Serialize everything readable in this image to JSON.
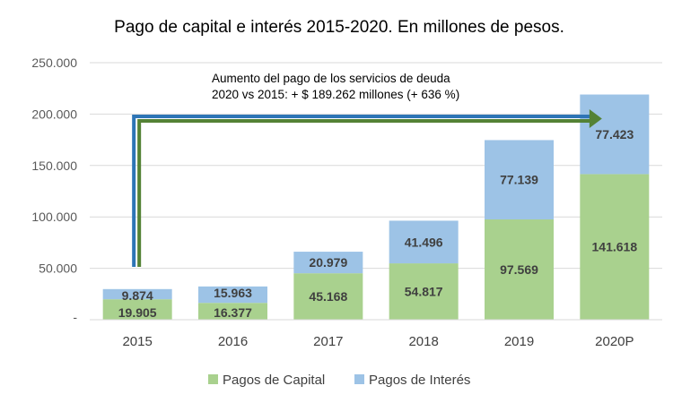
{
  "chart_data": {
    "type": "bar",
    "stacked": true,
    "title": "Pago de capital e interés 2015-2020. En millones de pesos.",
    "categories": [
      "2015",
      "2016",
      "2017",
      "2018",
      "2019",
      "2020P"
    ],
    "series": [
      {
        "name": "Pagos de Capital",
        "color": "#a9d18e",
        "values": [
          19905,
          16377,
          45168,
          54817,
          97569,
          141618
        ],
        "labels": [
          "19.905",
          "16.377",
          "45.168",
          "54.817",
          "97.569",
          "141.618"
        ]
      },
      {
        "name": "Pagos de Interés",
        "color": "#9dc3e6",
        "values": [
          9874,
          15963,
          20979,
          41496,
          77139,
          77423
        ],
        "labels": [
          "9.874",
          "15.963",
          "20.979",
          "41.496",
          "77.139",
          "77.423"
        ]
      }
    ],
    "ylim": [
      0,
      250000
    ],
    "yticks": [
      0,
      50000,
      100000,
      150000,
      200000,
      250000
    ],
    "ytick_labels": [
      "-",
      "50.000",
      "100.000",
      "150.000",
      "200.000",
      "250.000"
    ],
    "grid": true,
    "legend_position": "bottom",
    "annotation": {
      "line1": "Aumento del pago de los servicios de deuda",
      "line2": "2020 vs 2015: + $ 189.262 millones (+ 636 %)",
      "from_category": "2015",
      "to_category": "2020P"
    },
    "arrow_colors": {
      "outer": "#2e75b6",
      "inner": "#548235"
    }
  }
}
